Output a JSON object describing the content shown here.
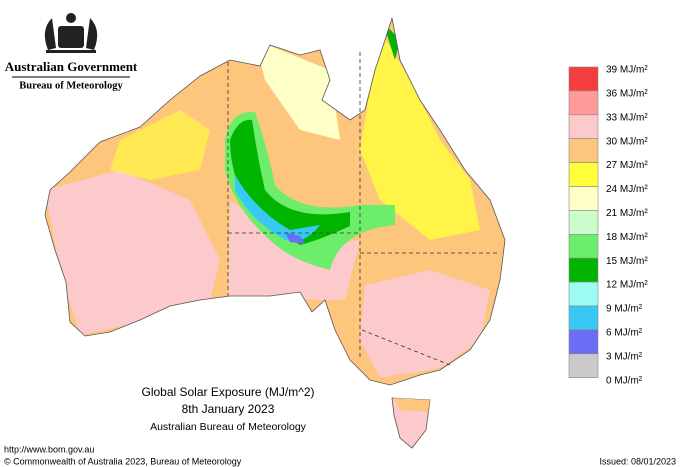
{
  "header": {
    "agency": "Australian Government",
    "bureau": "Bureau of Meteorology"
  },
  "map": {
    "title": "Global Solar Exposure (MJ/m^2)",
    "date": "8th January 2023",
    "source": "Australian Bureau of Meteorology"
  },
  "legend": {
    "labels": [
      "39 MJ/m²",
      "36 MJ/m²",
      "33 MJ/m²",
      "30 MJ/m²",
      "27 MJ/m²",
      "24 MJ/m²",
      "21 MJ/m²",
      "18 MJ/m²",
      "15 MJ/m²",
      "12 MJ/m²",
      "9 MJ/m²",
      "6 MJ/m²",
      "3 MJ/m²",
      "0 MJ/m²"
    ],
    "colors": [
      "#f43d3d",
      "#ff9a9a",
      "#fccaca",
      "#fdc67c",
      "#ffff3a",
      "#ffffc8",
      "#ccfccc",
      "#6ced6c",
      "#00b400",
      "#9cfcf4",
      "#38c8f4",
      "#6c6cf4",
      "#cacaca"
    ]
  },
  "footer": {
    "url": "http://www.bom.gov.au",
    "copyright": "© Commonwealth of Australia 2023, Bureau of Meteorology",
    "issued": "Issued: 08/01/2023"
  }
}
